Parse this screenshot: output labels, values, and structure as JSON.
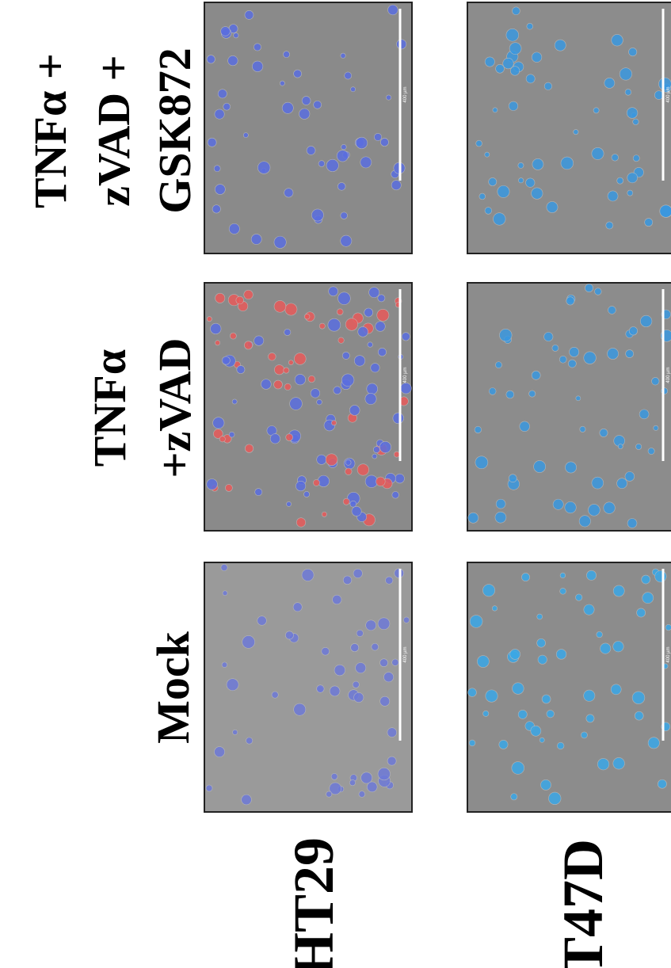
{
  "columns": [
    {
      "lines": [
        "Mock"
      ]
    },
    {
      "lines": [
        "TNFα",
        "+zVAD"
      ]
    },
    {
      "lines": [
        "TNFα +",
        "zVAD +",
        "GSK872"
      ]
    }
  ],
  "rows": [
    "HT29",
    "T47D"
  ],
  "scale_bar": "400 µm"
}
